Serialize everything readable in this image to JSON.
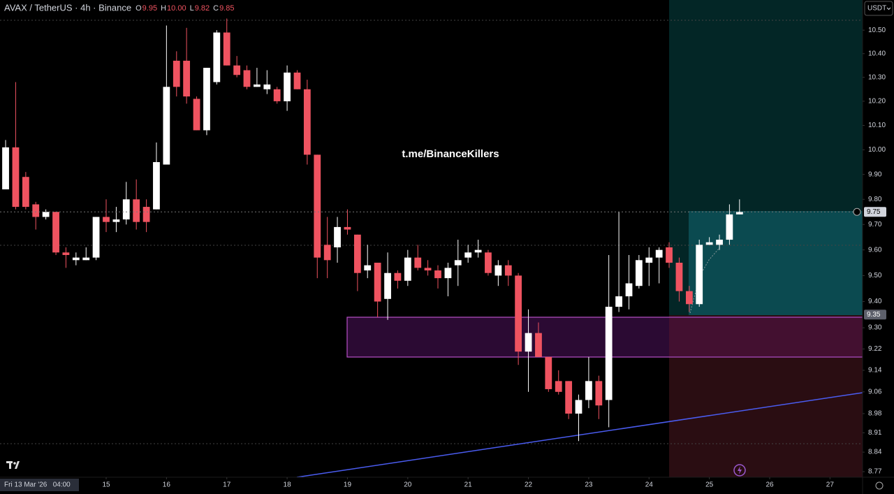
{
  "chart_data": {
    "type": "candlestick",
    "title": "AVAX / TetherUS · 4h · Binance",
    "legend": [
      {
        "key": "O",
        "value": 9.95
      },
      {
        "key": "H",
        "value": 10,
        "value_label": "10.00"
      },
      {
        "key": "L",
        "value": 9.82
      },
      {
        "key": "C",
        "value": 9.85
      }
    ],
    "currency": "USDT",
    "watermark": "t.me/BinanceKillers",
    "crosshair_x_label": "Fri 13 Mar '26   04:00",
    "up_color": "#ffffff",
    "down_color": "#ef5360",
    "log_y": true,
    "grid": false,
    "xlim": [
      13.24,
      27.54
    ],
    "xticks": [
      15,
      16,
      17,
      18,
      19,
      20,
      21,
      22,
      23,
      24,
      25,
      26,
      27
    ],
    "ylim": [
      8.75,
      10.63
    ],
    "yticks": [
      {
        "value": 10.5,
        "label": "10.50"
      },
      {
        "value": 10.4,
        "label": "10.40"
      },
      {
        "value": 10.3,
        "label": "10.30"
      },
      {
        "value": 10.2,
        "label": "10.20"
      },
      {
        "value": 10.1,
        "label": "10.10"
      },
      {
        "value": 10,
        "label": "10.00"
      },
      {
        "value": 9.9,
        "label": "9.90"
      },
      {
        "value": 9.8,
        "label": "9.80"
      },
      {
        "value": 9.7,
        "label": "9.70"
      },
      {
        "value": 9.6,
        "label": "9.60"
      },
      {
        "value": 9.5,
        "label": "9.50"
      },
      {
        "value": 9.4,
        "label": "9.40"
      },
      {
        "value": 9.3,
        "label": "9.30"
      },
      9.22,
      9.14,
      9.06,
      8.98,
      8.91,
      8.84,
      8.77
    ],
    "last_price": 9.75,
    "position_entry": 9.35,
    "candles": {
      "x": [
        13.333,
        13.5,
        13.667,
        13.833,
        14,
        14.167,
        14.333,
        14.5,
        14.667,
        14.833,
        15,
        15.167,
        15.333,
        15.5,
        15.667,
        15.833,
        16,
        16.167,
        16.333,
        16.5,
        16.667,
        16.833,
        17,
        17.167,
        17.333,
        17.5,
        17.667,
        17.833,
        18,
        18.167,
        18.333,
        18.5,
        18.667,
        18.833,
        19,
        19.167,
        19.333,
        19.5,
        19.667,
        19.833,
        20,
        20.167,
        20.333,
        20.5,
        20.667,
        20.833,
        21,
        21.167,
        21.333,
        21.5,
        21.667,
        21.833,
        22,
        22.167,
        22.333,
        22.5,
        22.667,
        22.833,
        23,
        23.167,
        23.333,
        23.5,
        23.667,
        23.833,
        24,
        24.167,
        24.333,
        24.5,
        24.667,
        24.833,
        25,
        25.167,
        25.333,
        25.5
      ],
      "open": [
        9.84,
        10.01,
        9.89,
        9.78,
        9.73,
        9.75,
        9.59,
        9.56,
        9.56,
        9.57,
        9.73,
        9.71,
        9.72,
        9.8,
        9.77,
        9.76,
        9.94,
        10.37,
        10.37,
        10.21,
        10.08,
        10.28,
        10.49,
        10.35,
        10.33,
        10.26,
        10.25,
        10.25,
        10.2,
        10.32,
        10.25,
        9.98,
        9.62,
        9.61,
        9.69,
        9.66,
        9.52,
        9.55,
        9.41,
        9.51,
        9.48,
        9.57,
        9.53,
        9.52,
        9.49,
        9.54,
        9.57,
        9.59,
        9.59,
        9.5,
        9.54,
        9.5,
        9.21,
        9.28,
        9.19,
        9.1,
        9.1,
        8.98,
        9.03,
        9.1,
        9.03,
        9.38,
        9.42,
        9.46,
        9.55,
        9.57,
        9.61,
        9.55,
        9.44,
        9.39,
        9.62,
        9.62,
        9.64,
        9.74
      ],
      "high": [
        10.04,
        10.28,
        9.91,
        9.79,
        9.76,
        9.75,
        9.61,
        9.59,
        9.61,
        9.73,
        9.8,
        9.77,
        9.87,
        9.88,
        9.8,
        10.03,
        10.52,
        10.41,
        10.51,
        10.22,
        10.34,
        10.5,
        10.55,
        10.39,
        10.35,
        10.34,
        10.33,
        10.26,
        10.35,
        10.33,
        10.29,
        9.98,
        9.73,
        9.73,
        9.76,
        9.66,
        9.62,
        9.55,
        9.59,
        9.52,
        9.6,
        9.62,
        9.56,
        9.54,
        9.55,
        9.64,
        9.62,
        9.64,
        9.6,
        9.56,
        9.56,
        9.51,
        9.37,
        9.32,
        9.19,
        9.14,
        9.1,
        9.05,
        9.19,
        9.12,
        9.58,
        9.75,
        9.58,
        9.58,
        9.61,
        9.61,
        9.63,
        9.57,
        9.46,
        9.64,
        9.65,
        9.66,
        9.78,
        9.8
      ],
      "low": [
        9.84,
        9.76,
        9.76,
        9.68,
        9.72,
        9.58,
        9.53,
        9.54,
        9.56,
        9.56,
        9.67,
        9.67,
        9.7,
        9.68,
        9.67,
        9.76,
        9.94,
        10.22,
        10.19,
        10.08,
        10.06,
        10.27,
        10.35,
        10.3,
        10.25,
        10.26,
        10.23,
        10.19,
        10.16,
        10.25,
        9.94,
        9.49,
        9.49,
        9.55,
        9.66,
        9.44,
        9.49,
        9.34,
        9.33,
        9.45,
        9.46,
        9.52,
        9.5,
        9.45,
        9.42,
        9.46,
        9.55,
        9.57,
        9.5,
        9.46,
        9.46,
        9.16,
        9.06,
        9.19,
        9.06,
        9.05,
        8.96,
        8.88,
        9.0,
        8.96,
        8.93,
        9.36,
        9.37,
        9.45,
        9.46,
        9.47,
        9.53,
        9.4,
        9.36,
        9.38,
        9.62,
        9.6,
        9.62,
        9.74
      ],
      "close": [
        10.01,
        9.77,
        9.77,
        9.73,
        9.75,
        9.59,
        9.58,
        9.57,
        9.57,
        9.73,
        9.71,
        9.72,
        9.8,
        9.71,
        9.71,
        9.95,
        10.26,
        10.26,
        10.22,
        10.08,
        10.34,
        10.49,
        10.35,
        10.31,
        10.26,
        10.27,
        10.27,
        10.2,
        10.32,
        10.25,
        9.98,
        9.57,
        9.56,
        9.69,
        9.68,
        9.51,
        9.54,
        9.4,
        9.51,
        9.48,
        9.57,
        9.53,
        9.52,
        9.49,
        9.53,
        9.56,
        9.59,
        9.6,
        9.51,
        9.54,
        9.5,
        9.21,
        9.28,
        9.19,
        9.07,
        9.06,
        8.98,
        9.03,
        9.1,
        9.01,
        9.38,
        9.42,
        9.47,
        9.56,
        9.57,
        9.6,
        9.55,
        9.44,
        9.39,
        9.62,
        9.63,
        9.64,
        9.74,
        9.75
      ]
    }
  }
}
